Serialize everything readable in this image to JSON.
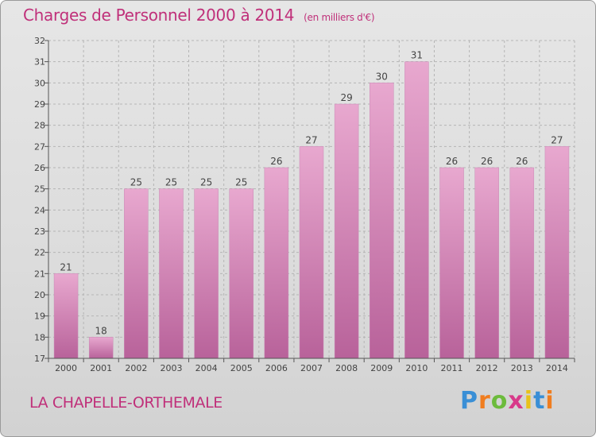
{
  "header": {
    "title": "Charges de Personnel 2000 à 2014",
    "subtitle": "(en milliers d'€)"
  },
  "footer": {
    "commune": "LA CHAPELLE-ORTHEMALE",
    "logo_letters": [
      "P",
      "r",
      "o",
      "x",
      "i",
      "t",
      "i"
    ],
    "logo_colors": [
      "#3a8fd6",
      "#f07d1f",
      "#6cbb3c",
      "#d83a8a",
      "#e8c21a",
      "#3a8fd6",
      "#f07d1f"
    ]
  },
  "colors": {
    "accent": "#c0307a",
    "bar_top": "#e8a8cf",
    "bar_bottom": "#b8629a",
    "axis": "#555555",
    "grid": "#b5b5b5"
  },
  "chart_data": {
    "type": "bar",
    "categories": [
      "2000",
      "2001",
      "2002",
      "2003",
      "2004",
      "2005",
      "2006",
      "2007",
      "2008",
      "2009",
      "2010",
      "2011",
      "2012",
      "2013",
      "2014"
    ],
    "values": [
      21,
      18,
      25,
      25,
      25,
      25,
      26,
      27,
      29,
      30,
      31,
      26,
      26,
      26,
      27
    ],
    "ylim": [
      17,
      32
    ],
    "yticks": [
      17,
      18,
      19,
      20,
      21,
      22,
      23,
      24,
      25,
      26,
      27,
      28,
      29,
      30,
      31,
      32
    ],
    "grid": true
  }
}
